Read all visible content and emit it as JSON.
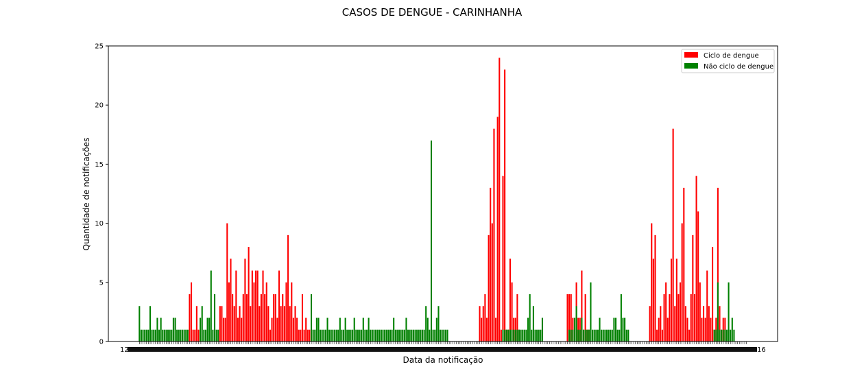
{
  "chart_data": {
    "type": "bar",
    "title": "CASOS DE DENGUE - CARINHANHA",
    "xlabel": "Data da notificação",
    "ylabel": "Quantidade de notificações",
    "ylim": [
      0,
      25
    ],
    "yticks": [
      0,
      5,
      10,
      15,
      20,
      25
    ],
    "x_tick_labels_visible": [
      "12",
      "16"
    ],
    "legend": {
      "position": "top-right",
      "entries": [
        {
          "label": "Ciclo de dengue",
          "color": "#ff0000"
        },
        {
          "label": "Não ciclo de dengue",
          "color": "#008000"
        }
      ]
    },
    "colors": {
      "ciclo": "#ff0000",
      "nao_ciclo": "#008000"
    },
    "series": [
      {
        "name": "Ciclo de dengue",
        "values": [
          0,
          0,
          0,
          0,
          0,
          0,
          0,
          0,
          0,
          0,
          0,
          0,
          0,
          0,
          0,
          0,
          0,
          0,
          0,
          0,
          0,
          0,
          0,
          0,
          0,
          0,
          0,
          0,
          4,
          5,
          1,
          1,
          3,
          1,
          0,
          0,
          0,
          0,
          0,
          0,
          0,
          0,
          0,
          0,
          0,
          3,
          3,
          2,
          2,
          10,
          5,
          7,
          4,
          3,
          6,
          2,
          3,
          2,
          4,
          7,
          4,
          8,
          3,
          6,
          5,
          6,
          6,
          3,
          4,
          6,
          4,
          5,
          3,
          1,
          2,
          4,
          4,
          2,
          6,
          3,
          4,
          3,
          5,
          9,
          3,
          5,
          2,
          3,
          2,
          1,
          1,
          4,
          1,
          2,
          1,
          1,
          0,
          0,
          0,
          0,
          0,
          0,
          0,
          0,
          0,
          0,
          0,
          0,
          0,
          0,
          0,
          0,
          0,
          0,
          0,
          0,
          0,
          0,
          0,
          0,
          0,
          0,
          0,
          0,
          0,
          0,
          0,
          0,
          0,
          0,
          0,
          0,
          0,
          0,
          0,
          0,
          0,
          0,
          0,
          0,
          0,
          0,
          0,
          0,
          0,
          0,
          0,
          0,
          0,
          0,
          0,
          0,
          0,
          0,
          0,
          0,
          0,
          0,
          0,
          0,
          0,
          0,
          0,
          0,
          0,
          0,
          0,
          0,
          0,
          0,
          0,
          0,
          0,
          0,
          0,
          0,
          0,
          0,
          0,
          0,
          0,
          0,
          0,
          0,
          0,
          0,
          0,
          0,
          0,
          0,
          3,
          2,
          3,
          4,
          2,
          9,
          13,
          10,
          18,
          2,
          19,
          24,
          1,
          14,
          23,
          1,
          1,
          7,
          5,
          2,
          2,
          4,
          1,
          0,
          0,
          0,
          0,
          0,
          0,
          0,
          0,
          0,
          0,
          0,
          0,
          0,
          0,
          0,
          0,
          0,
          0,
          0,
          0,
          0,
          0,
          0,
          0,
          0,
          0,
          4,
          4,
          4,
          2,
          0,
          5,
          2,
          2,
          6,
          1,
          4,
          1,
          1,
          0,
          0,
          0,
          0,
          0,
          0,
          0,
          0,
          0,
          0,
          0,
          0,
          0,
          0,
          0,
          0,
          0,
          0,
          0,
          0,
          0,
          0,
          0,
          0,
          0,
          0,
          0,
          0,
          0,
          0,
          0,
          0,
          0,
          3,
          10,
          7,
          9,
          1,
          2,
          3,
          1,
          4,
          5,
          2,
          4,
          7,
          18,
          3,
          7,
          4,
          5,
          10,
          13,
          3,
          2,
          1,
          4,
          9,
          4,
          14,
          11,
          5,
          2,
          3,
          2,
          6,
          3,
          2,
          8,
          1,
          2,
          13,
          3,
          1,
          2,
          2,
          0,
          0,
          0,
          0,
          0,
          0,
          0,
          0,
          0,
          0,
          0,
          0
        ]
      },
      {
        "name": "Não ciclo de dengue",
        "values": [
          3,
          1,
          1,
          1,
          1,
          1,
          3,
          1,
          1,
          1,
          2,
          1,
          2,
          1,
          1,
          1,
          1,
          1,
          1,
          2,
          2,
          1,
          1,
          1,
          1,
          1,
          1,
          1,
          0,
          0,
          0,
          0,
          0,
          0,
          2,
          3,
          1,
          1,
          2,
          2,
          6,
          1,
          4,
          1,
          1,
          0,
          0,
          0,
          0,
          0,
          0,
          0,
          0,
          0,
          0,
          0,
          0,
          0,
          0,
          0,
          0,
          0,
          0,
          0,
          0,
          0,
          0,
          0,
          0,
          0,
          0,
          0,
          0,
          0,
          0,
          0,
          0,
          0,
          0,
          0,
          0,
          0,
          0,
          0,
          0,
          0,
          0,
          0,
          0,
          0,
          0,
          0,
          0,
          0,
          0,
          0,
          4,
          1,
          1,
          2,
          2,
          1,
          1,
          1,
          1,
          2,
          1,
          1,
          1,
          1,
          1,
          1,
          2,
          1,
          1,
          2,
          1,
          1,
          1,
          1,
          2,
          1,
          1,
          1,
          1,
          2,
          1,
          1,
          2,
          1,
          1,
          1,
          1,
          1,
          1,
          1,
          1,
          1,
          1,
          1,
          1,
          1,
          2,
          1,
          1,
          1,
          1,
          1,
          1,
          2,
          1,
          1,
          1,
          1,
          1,
          1,
          1,
          1,
          1,
          1,
          3,
          2,
          1,
          17,
          1,
          1,
          2,
          3,
          1,
          1,
          1,
          1,
          1,
          0,
          0,
          0,
          0,
          0,
          0,
          0,
          0,
          0,
          0,
          0,
          0,
          0,
          0,
          0,
          0,
          0,
          0,
          0,
          0,
          0,
          0,
          0,
          0,
          0,
          0,
          0,
          0,
          0,
          0,
          1,
          1,
          1,
          1,
          1,
          1,
          1,
          1,
          1,
          1,
          1,
          1,
          1,
          1,
          2,
          4,
          1,
          3,
          1,
          1,
          1,
          1,
          2,
          0,
          0,
          0,
          0,
          0,
          0,
          0,
          0,
          0,
          0,
          0,
          0,
          0,
          0,
          1,
          1,
          1,
          2,
          3,
          1,
          1,
          2,
          1,
          1,
          1,
          1,
          5,
          1,
          1,
          1,
          1,
          2,
          1,
          1,
          1,
          1,
          1,
          1,
          1,
          2,
          2,
          1,
          1,
          4,
          2,
          2,
          1,
          1,
          0,
          0,
          0,
          0,
          0,
          0,
          0,
          0,
          0,
          0,
          0,
          0,
          0,
          0,
          0,
          0,
          0,
          0,
          0,
          0,
          0,
          0,
          0,
          0,
          0,
          0,
          0,
          0,
          0,
          0,
          0,
          0,
          0,
          0,
          0,
          0,
          0,
          0,
          0,
          0,
          0,
          0,
          0,
          0,
          0,
          0,
          0,
          1,
          1,
          5,
          1,
          1,
          1,
          1,
          1,
          5,
          1,
          2,
          1
        ]
      }
    ]
  }
}
